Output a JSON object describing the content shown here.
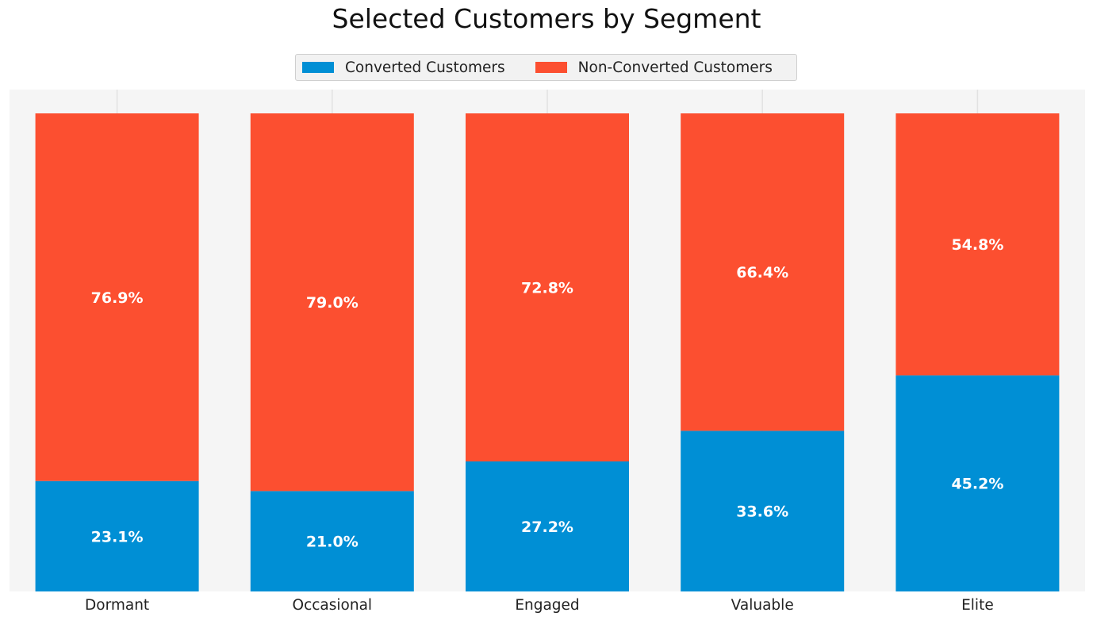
{
  "chart_data": {
    "type": "bar",
    "stacked": true,
    "title": "Selected Customers by Segment",
    "xlabel": "",
    "ylabel": "",
    "categories": [
      "Dormant",
      "Occasional",
      "Engaged",
      "Valuable",
      "Elite"
    ],
    "ylim": [
      0,
      100
    ],
    "series": [
      {
        "name": "Converted Customers",
        "color": "#008fd5",
        "values": [
          23.1,
          21.0,
          27.2,
          33.6,
          45.2
        ],
        "labels": [
          "23.1%",
          "21.0%",
          "27.2%",
          "33.6%",
          "45.2%"
        ]
      },
      {
        "name": "Non-Converted Customers",
        "color": "#fc4f30",
        "values": [
          76.9,
          79.0,
          72.8,
          66.4,
          54.8
        ],
        "labels": [
          "76.9%",
          "79.0%",
          "72.8%",
          "66.4%",
          "54.8%"
        ]
      }
    ],
    "legend": "top-center",
    "grid": true,
    "background": "#f5f5f5"
  }
}
